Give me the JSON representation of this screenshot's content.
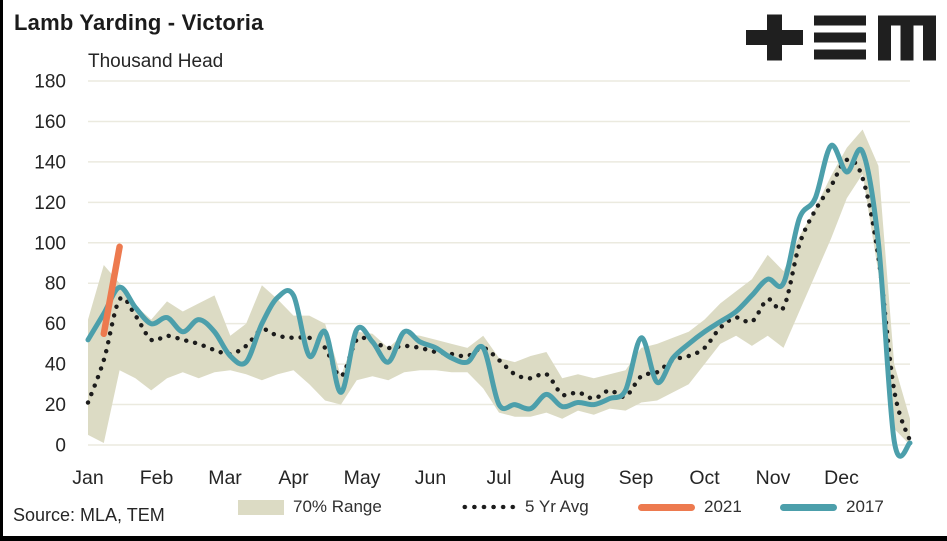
{
  "header": {
    "title": "Lamb Yarding - Victoria",
    "units_label": "Thousand Head"
  },
  "source": {
    "text": "Source: MLA, TEM"
  },
  "logo": {
    "name": "TEM logo"
  },
  "legend": {
    "items": [
      {
        "label": "70% Range",
        "swatch": "band"
      },
      {
        "label": "5 Yr Avg",
        "swatch": "dots"
      },
      {
        "label": "2021",
        "swatch": "line-orange"
      },
      {
        "label": "2017",
        "swatch": "line-teal"
      }
    ]
  },
  "colors": {
    "range_band": "#DCDBC4",
    "five_yr_avg": "#1C1C1C",
    "y2021": "#ED7A4F",
    "y2017": "#4C9FAB",
    "gridline": "#EBEADF",
    "tick_text": "#252525",
    "frame": "#000000",
    "background": "#FFFFFF"
  },
  "chart_data": {
    "type": "line",
    "title": "Lamb Yarding - Victoria",
    "xlabel": "",
    "ylabel": "Thousand Head",
    "ylim": [
      0,
      180
    ],
    "yticks": [
      0,
      20,
      40,
      60,
      80,
      100,
      120,
      140,
      160,
      180
    ],
    "x_tick_labels": [
      "Jan",
      "Feb",
      "Mar",
      "Apr",
      "May",
      "Jun",
      "Jul",
      "Aug",
      "Sep",
      "Oct",
      "Nov",
      "Dec"
    ],
    "x_unit": "week_of_year_0_to_52",
    "grid": "horizontal",
    "legend_position": "bottom",
    "series": [
      {
        "name": "70% Range",
        "type": "band",
        "low": [
          5,
          1,
          37,
          33,
          27,
          33,
          36,
          33,
          36,
          37,
          35,
          32,
          35,
          37,
          30,
          22,
          20,
          32,
          34,
          32,
          36,
          37,
          37,
          36,
          36,
          28,
          16,
          14,
          14,
          16,
          13,
          17,
          15,
          18,
          17,
          21,
          22,
          26,
          30,
          40,
          50,
          54,
          49,
          54,
          48,
          66,
          84,
          102,
          122,
          134,
          85,
          8,
          0
        ],
        "high": [
          62,
          89,
          80,
          69,
          62,
          71,
          66,
          70,
          74,
          54,
          60,
          79,
          72,
          64,
          64,
          60,
          34,
          56,
          55,
          48,
          55,
          54,
          52,
          50,
          48,
          54,
          43,
          41,
          44,
          46,
          33,
          35,
          33,
          35,
          37,
          48,
          50,
          53,
          56,
          62,
          70,
          76,
          82,
          94,
          86,
          103,
          117,
          133,
          147,
          156,
          138,
          40,
          13
        ]
      },
      {
        "name": "5 Yr Avg",
        "type": "dotted_line",
        "values": [
          21,
          42,
          72,
          64,
          52,
          54,
          52,
          50,
          47,
          45,
          49,
          57,
          54,
          53,
          53,
          48,
          34,
          52,
          51,
          48,
          49,
          48,
          46,
          45,
          44,
          48,
          42,
          35,
          33,
          35,
          25,
          26,
          23,
          27,
          24,
          34,
          36,
          42,
          44,
          48,
          58,
          63,
          61,
          72,
          68,
          99,
          116,
          128,
          141,
          132,
          93,
          27,
          2
        ]
      },
      {
        "name": "2021",
        "type": "line",
        "x_weeks": [
          1,
          2
        ],
        "values": [
          55,
          98
        ]
      },
      {
        "name": "2017",
        "type": "line",
        "values": [
          52,
          65,
          78,
          68,
          60,
          63,
          56,
          62,
          56,
          44,
          41,
          60,
          73,
          74,
          44,
          56,
          26,
          57,
          51,
          41,
          56,
          51,
          48,
          43,
          41,
          48,
          20,
          20,
          18,
          25,
          19,
          21,
          20,
          23,
          27,
          53,
          31,
          43,
          50,
          56,
          61,
          66,
          74,
          82,
          80,
          112,
          122,
          148,
          135,
          145,
          100,
          2,
          1
        ]
      }
    ]
  }
}
